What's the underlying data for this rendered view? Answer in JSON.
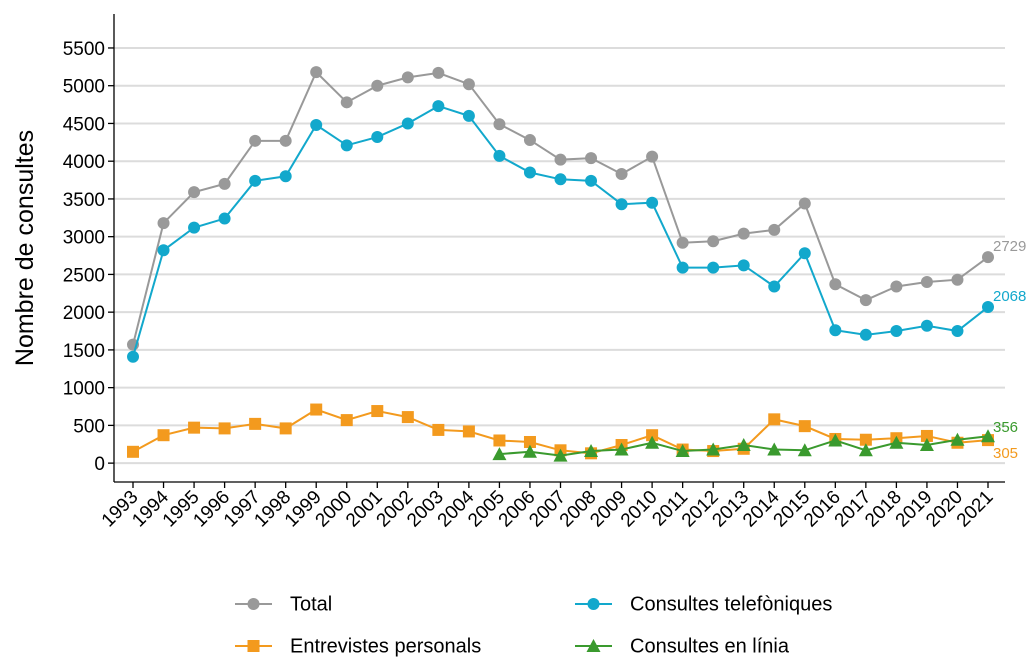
{
  "chart_data": {
    "type": "line",
    "y_label": "Nombre de consultes",
    "categories": [
      "1993",
      "1994",
      "1995",
      "1996",
      "1997",
      "1998",
      "1999",
      "2000",
      "2001",
      "2002",
      "2003",
      "2004",
      "2005",
      "2006",
      "2007",
      "2008",
      "2009",
      "2010",
      "2011",
      "2012",
      "2013",
      "2014",
      "2015",
      "2016",
      "2017",
      "2018",
      "2019",
      "2020",
      "2021"
    ],
    "series": [
      {
        "name": "Total",
        "color": "#999999",
        "marker": "circle",
        "values": [
          1570,
          3180,
          3590,
          3700,
          4270,
          4270,
          5180,
          4780,
          5000,
          5110,
          5170,
          5020,
          4490,
          4280,
          4020,
          4040,
          3830,
          4060,
          2920,
          2940,
          3040,
          3090,
          3440,
          2370,
          2160,
          2340,
          2400,
          2430,
          2729
        ]
      },
      {
        "name": "Consultes telefòniques",
        "color": "#12a8cc",
        "marker": "circle",
        "values": [
          1410,
          2820,
          3120,
          3240,
          3740,
          3800,
          4480,
          4210,
          4320,
          4500,
          4730,
          4600,
          4070,
          3850,
          3760,
          3740,
          3430,
          3450,
          2590,
          2590,
          2620,
          2340,
          2780,
          1760,
          1700,
          1750,
          1820,
          1750,
          2068
        ]
      },
      {
        "name": "Entrevistes personals",
        "color": "#f39a1e",
        "marker": "square",
        "values": [
          150,
          370,
          470,
          460,
          520,
          460,
          710,
          570,
          690,
          610,
          440,
          420,
          300,
          280,
          170,
          130,
          240,
          370,
          180,
          160,
          190,
          580,
          490,
          320,
          310,
          330,
          360,
          270,
          305
        ]
      },
      {
        "name": "Consultes en línia",
        "color": "#3a9a2e",
        "marker": "triangle",
        "values": [
          null,
          null,
          null,
          null,
          null,
          null,
          null,
          null,
          null,
          null,
          null,
          null,
          120,
          150,
          100,
          160,
          180,
          270,
          160,
          180,
          240,
          180,
          170,
          300,
          170,
          270,
          240,
          310,
          356
        ]
      }
    ],
    "ylim": [
      -250,
      5950
    ],
    "yticks": [
      0,
      500,
      1000,
      1500,
      2000,
      2500,
      3000,
      3500,
      4000,
      4500,
      5000,
      5500
    ],
    "grid": true
  }
}
